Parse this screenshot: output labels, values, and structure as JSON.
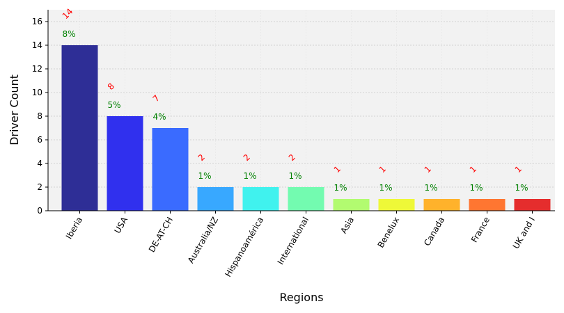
{
  "chart_data": {
    "type": "bar",
    "xlabel": "Regions",
    "ylabel": "Driver Count",
    "ylim": [
      0,
      17
    ],
    "yticks": [
      0,
      2,
      4,
      6,
      8,
      10,
      12,
      14,
      16
    ],
    "grid": true,
    "categories": [
      "Iberia",
      "USA",
      "DE-AT-CH",
      "Australia/NZ",
      "Hispanoamérica",
      "International",
      "Asia",
      "Benelux",
      "Canada",
      "France",
      "UK and I"
    ],
    "values": [
      14,
      8,
      7,
      2,
      2,
      2,
      1,
      1,
      1,
      1,
      1
    ],
    "count_labels": [
      "14",
      "8",
      "7",
      "2",
      "2",
      "2",
      "1",
      "1",
      "1",
      "1",
      "1"
    ],
    "percent_labels": [
      "8%",
      "5%",
      "4%",
      "1%",
      "1%",
      "1%",
      "1%",
      "1%",
      "1%",
      "1%",
      "1%"
    ],
    "bar_colors": [
      "#2e2e96",
      "#3030ee",
      "#3a6bff",
      "#38a8ff",
      "#40f2ee",
      "#73fbb0",
      "#b2fb70",
      "#eef838",
      "#ffb22b",
      "#ff7631",
      "#e52d2d"
    ],
    "count_label_color": "#ff0000",
    "percent_label_color": "#008000",
    "plot_background": "#f2f2f2",
    "grid_color": "#c8c8c8"
  }
}
